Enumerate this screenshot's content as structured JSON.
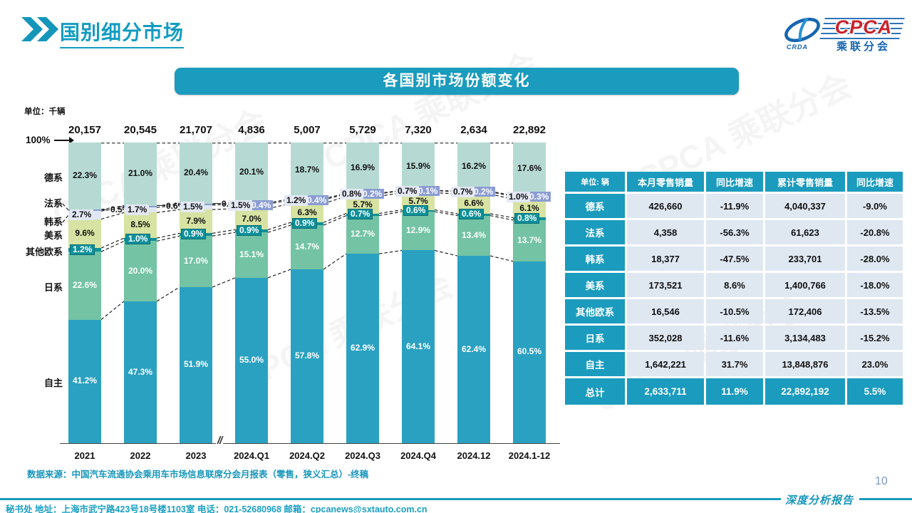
{
  "page": {
    "header_title": "国别细分市场",
    "chart_title": "各国别市场份额变化",
    "unit_label": "单位：千辆",
    "hundred_label": "100%",
    "axis_break": "//",
    "watermark": "CPCA 乘联分会",
    "source": "数据来源：中国汽车流通协会乘用车市场信息联席分会月报表（零售，狭义汇总）-终稿",
    "footer_contact": "秘书处  地址：上海市武宁路423号18号楼1103室 电话：021-52680968  邮箱：cpcanews@sxtauto.com.cn",
    "footer_report": "深度分析报告",
    "page_number": "10"
  },
  "logo": {
    "cpca": "CPCA",
    "crda": "CRDA",
    "subtitle": "乘联分会"
  },
  "chart_data": {
    "type": "bar",
    "stacked": true,
    "unit": "千辆",
    "ylim": [
      0,
      100
    ],
    "categories": [
      "2021",
      "2022",
      "2023",
      "2024.Q1",
      "2024.Q2",
      "2024.Q3",
      "2024.Q4",
      "2024.12",
      "2024.1-12"
    ],
    "totals": [
      "20,157",
      "20,545",
      "21,707",
      "4,836",
      "5,007",
      "5,729",
      "7,320",
      "2,634",
      "22,892"
    ],
    "stack_order": "top-to-bottom",
    "series": [
      {
        "name": "德系",
        "color": "#b6dad3",
        "label_style": "dark",
        "values": [
          22.3,
          21.0,
          20.4,
          20.1,
          18.7,
          16.9,
          15.9,
          16.2,
          17.6
        ]
      },
      {
        "name": "法系",
        "color": "#8b9cd2",
        "label_style": "callout-badge",
        "values": [
          0.5,
          0.6,
          0.4,
          0.4,
          0.4,
          0.2,
          0.1,
          0.2,
          0.3
        ]
      },
      {
        "name": "韩系",
        "color": "#e0e6f3",
        "label_style": "boxlight",
        "values": [
          2.7,
          1.7,
          1.5,
          1.5,
          1.2,
          0.8,
          0.7,
          0.7,
          1.0
        ]
      },
      {
        "name": "美系",
        "color": "#d6e3a2",
        "label_style": "dark",
        "values": [
          9.6,
          8.5,
          7.9,
          7.0,
          6.3,
          5.7,
          5.7,
          6.6,
          6.1
        ]
      },
      {
        "name": "其他欧系",
        "color": "#0e9099",
        "label_style": "badge-teal",
        "values": [
          1.2,
          1.0,
          0.9,
          0.9,
          0.9,
          0.7,
          0.6,
          0.6,
          0.8
        ]
      },
      {
        "name": "日系",
        "color": "#73c3a4",
        "label_style": "light",
        "values": [
          22.6,
          20.0,
          17.0,
          15.1,
          14.7,
          12.7,
          12.9,
          13.4,
          13.7
        ]
      },
      {
        "name": "自主",
        "color": "#2ba1c1",
        "label_style": "light",
        "values": [
          41.2,
          47.3,
          51.9,
          55.0,
          57.8,
          62.9,
          64.1,
          62.4,
          60.5
        ]
      }
    ]
  },
  "table": {
    "unit_header": "单位: 辆",
    "columns": [
      "本月零售销量",
      "同比增速",
      "累计零售销量",
      "同比增速"
    ],
    "rows": [
      {
        "label": "德系",
        "cells": [
          "426,660",
          "-11.9%",
          "4,040,337",
          "-9.0%"
        ]
      },
      {
        "label": "法系",
        "cells": [
          "4,358",
          "-56.3%",
          "61,623",
          "-20.8%"
        ]
      },
      {
        "label": "韩系",
        "cells": [
          "18,377",
          "-47.5%",
          "233,701",
          "-28.0%"
        ]
      },
      {
        "label": "美系",
        "cells": [
          "173,521",
          "8.6%",
          "1,400,766",
          "-18.0%"
        ]
      },
      {
        "label": "其他欧系",
        "cells": [
          "16,546",
          "-10.5%",
          "172,406",
          "-13.5%"
        ]
      },
      {
        "label": "日系",
        "cells": [
          "352,028",
          "-11.6%",
          "3,134,483",
          "-15.2%"
        ]
      },
      {
        "label": "自主",
        "cells": [
          "1,642,221",
          "31.7%",
          "13,848,876",
          "23.0%"
        ]
      }
    ],
    "total_row": {
      "label": "总计",
      "cells": [
        "2,633,711",
        "11.9%",
        "22,892,192",
        "5.5%"
      ]
    }
  },
  "colors": {
    "accent_teal": "#1b9bbd",
    "table_cell_bg": "#dfe7f1",
    "dashed_line": "#222222",
    "page_number": "#7f9ac8"
  }
}
